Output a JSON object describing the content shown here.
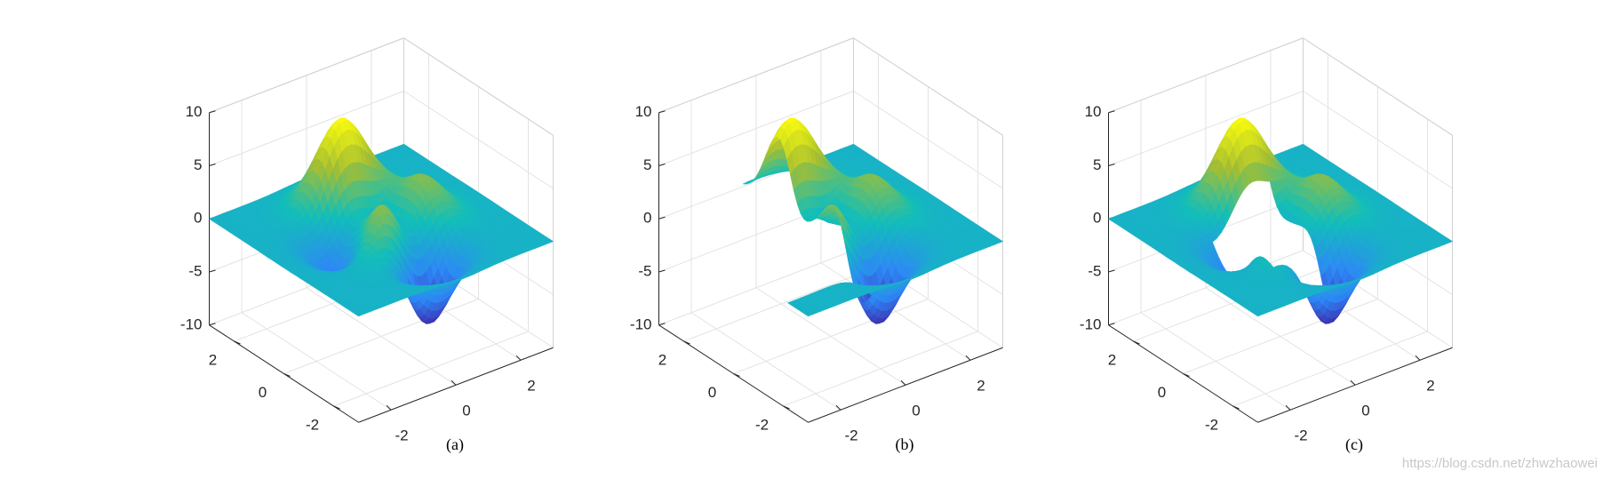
{
  "chart_data": [
    {
      "type": "surface",
      "caption": "(a)",
      "xlim": [
        -3,
        3
      ],
      "ylim": [
        -3,
        3
      ],
      "zlim": [
        -10,
        10
      ],
      "xticks": [
        -2,
        0,
        2
      ],
      "yticks": [
        -2,
        0,
        2
      ],
      "zticks": [
        -10,
        -5,
        0,
        5,
        10
      ],
      "grid": true
    },
    {
      "type": "surface",
      "caption": "(b)",
      "xlim": [
        -3,
        3
      ],
      "ylim": [
        -3,
        3
      ],
      "zlim": [
        -10,
        10
      ],
      "xticks": [
        -2,
        0,
        2
      ],
      "yticks": [
        -2,
        0,
        2
      ],
      "zticks": [
        -10,
        -5,
        0,
        5,
        10
      ],
      "grid": true
    },
    {
      "type": "surface",
      "caption": "(c)",
      "xlim": [
        -3,
        3
      ],
      "ylim": [
        -3,
        3
      ],
      "zlim": [
        -10,
        10
      ],
      "xticks": [
        -2,
        0,
        2
      ],
      "yticks": [
        -2,
        0,
        2
      ],
      "zticks": [
        -10,
        -5,
        0,
        5,
        10
      ],
      "grid": true
    }
  ],
  "watermark": "https://blog.csdn.net/zhwzhaowei"
}
